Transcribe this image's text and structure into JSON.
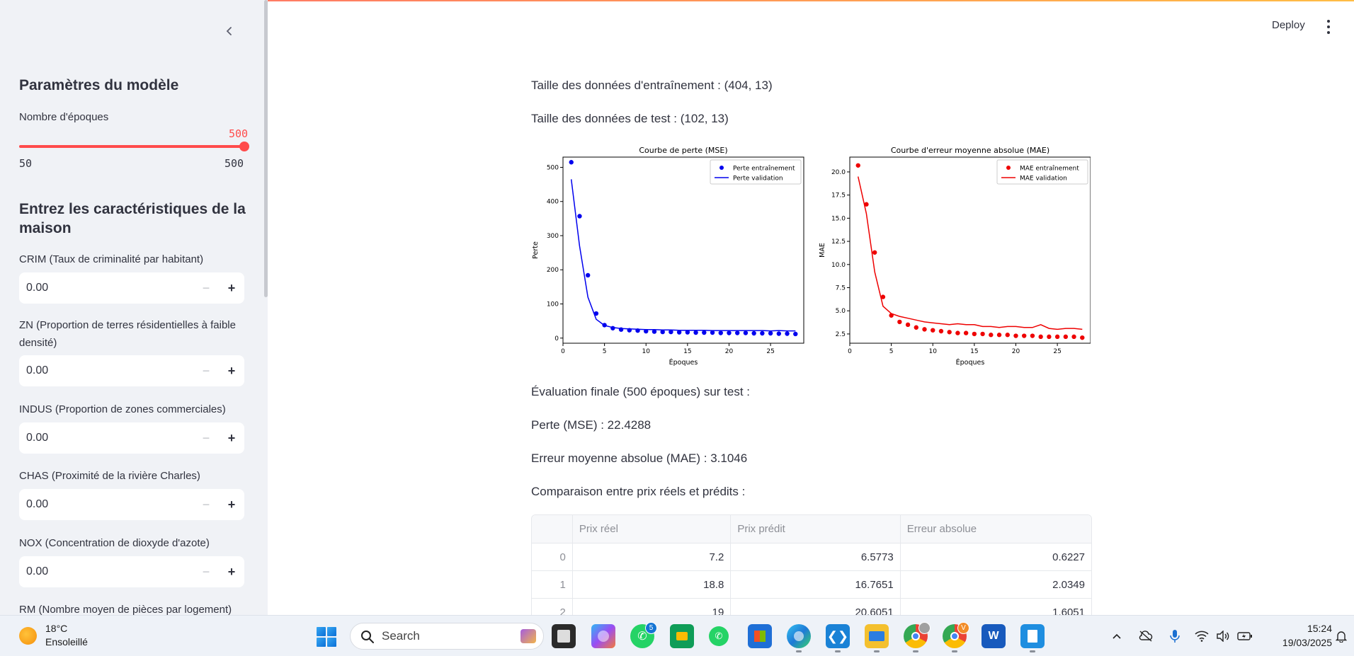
{
  "sidebar": {
    "model_heading": "Paramètres du modèle",
    "epochs_label": "Nombre d'époques",
    "epochs_value": "500",
    "epochs_min": "50",
    "epochs_max": "500",
    "epochs_fraction": 1.0,
    "features_heading": "Entrez les caractéristiques de la maison",
    "inputs": [
      {
        "label": "CRIM (Taux de criminalité par habitant)",
        "value": "0.00"
      },
      {
        "label": "ZN (Proportion de terres résidentielles à faible densité)",
        "value": "0.00"
      },
      {
        "label": "INDUS (Proportion de zones commerciales)",
        "value": "0.00"
      },
      {
        "label": "CHAS (Proximité de la rivière Charles)",
        "value": "0.00"
      },
      {
        "label": "NOX (Concentration de dioxyde d'azote)",
        "value": "0.00"
      },
      {
        "label": "RM (Nombre moyen de pièces par logement)",
        "value": ""
      }
    ],
    "minus_symbol": "−",
    "plus_symbol": "+"
  },
  "header": {
    "deploy_label": "Deploy"
  },
  "main": {
    "train_size": "Taille des données d'entraînement : (404, 13)",
    "test_size": "Taille des données de test : (102, 13)",
    "final_eval": "Évaluation finale (500 époques) sur test :",
    "loss_result": "Perte (MSE) : 22.4288",
    "mae_result": "Erreur moyenne absolue (MAE) : 3.1046",
    "comparison_title": "Comparaison entre prix réels et prédits :",
    "table": {
      "headers": [
        "",
        "Prix réel",
        "Prix prédit",
        "Erreur absolue"
      ],
      "rows": [
        [
          "0",
          "7.2",
          "6.5773",
          "0.6227"
        ],
        [
          "1",
          "18.8",
          "16.7651",
          "2.0349"
        ],
        [
          "2",
          "19",
          "20.6051",
          "1.6051"
        ]
      ]
    }
  },
  "chart_data": [
    {
      "type": "line",
      "title": "Courbe de perte (MSE)",
      "xlabel": "Époques",
      "ylabel": "Perte",
      "xlim": [
        0,
        29
      ],
      "ylim": [
        -15,
        530
      ],
      "xticks": [
        0,
        5,
        10,
        15,
        20,
        25
      ],
      "yticks": [
        0,
        100,
        200,
        300,
        400,
        500
      ],
      "legend_position": "top-right",
      "color": "#0000ee",
      "series": [
        {
          "name": "Perte entraînement",
          "style": "points",
          "x": [
            1,
            2,
            3,
            4,
            5,
            6,
            7,
            8,
            9,
            10,
            11,
            12,
            13,
            14,
            15,
            16,
            17,
            18,
            19,
            20,
            21,
            22,
            23,
            24,
            25,
            26,
            27,
            28
          ],
          "y": [
            515,
            357,
            184,
            72,
            38,
            29,
            25,
            23,
            22,
            20,
            19,
            18,
            18,
            17,
            17,
            16,
            16,
            16,
            15,
            15,
            15,
            15,
            14,
            14,
            14,
            13,
            13,
            12
          ]
        },
        {
          "name": "Perte validation",
          "style": "line",
          "x": [
            1,
            2,
            3,
            4,
            5,
            6,
            7,
            8,
            9,
            10,
            11,
            12,
            13,
            14,
            15,
            16,
            17,
            18,
            19,
            20,
            21,
            22,
            23,
            24,
            25,
            26,
            27,
            28
          ],
          "y": [
            465,
            270,
            120,
            55,
            37,
            31,
            28,
            27,
            26,
            25,
            25,
            24,
            24,
            23,
            23,
            23,
            23,
            22,
            22,
            22,
            22,
            22,
            22,
            22,
            21,
            22,
            21,
            21
          ]
        }
      ]
    },
    {
      "type": "line",
      "title": "Courbe d'erreur moyenne absolue (MAE)",
      "xlabel": "Époques",
      "ylabel": "MAE",
      "xlim": [
        0,
        29
      ],
      "ylim": [
        1.5,
        21.6
      ],
      "xticks": [
        0,
        5,
        10,
        15,
        20,
        25
      ],
      "yticks": [
        2.5,
        5.0,
        7.5,
        10.0,
        12.5,
        15.0,
        17.5,
        20.0
      ],
      "ytick_labels": [
        "2.5",
        "5.0",
        "7.5",
        "10.0",
        "12.5",
        "15.0",
        "17.5",
        "20.0"
      ],
      "legend_position": "top-right",
      "color": "#ee0000",
      "series": [
        {
          "name": "MAE entraînement",
          "style": "points",
          "x": [
            1,
            2,
            3,
            4,
            5,
            6,
            7,
            8,
            9,
            10,
            11,
            12,
            13,
            14,
            15,
            16,
            17,
            18,
            19,
            20,
            21,
            22,
            23,
            24,
            25,
            26,
            27,
            28
          ],
          "y": [
            20.7,
            16.5,
            11.3,
            6.5,
            4.5,
            3.8,
            3.5,
            3.2,
            3.0,
            2.9,
            2.8,
            2.7,
            2.6,
            2.6,
            2.5,
            2.5,
            2.4,
            2.4,
            2.4,
            2.3,
            2.3,
            2.3,
            2.2,
            2.2,
            2.2,
            2.2,
            2.2,
            2.1
          ]
        },
        {
          "name": "MAE validation",
          "style": "line",
          "x": [
            1,
            2,
            3,
            4,
            5,
            6,
            7,
            8,
            9,
            10,
            11,
            12,
            13,
            14,
            15,
            16,
            17,
            18,
            19,
            20,
            21,
            22,
            23,
            24,
            25,
            26,
            27,
            28
          ],
          "y": [
            19.5,
            15.5,
            9.2,
            5.5,
            4.7,
            4.4,
            4.2,
            4.0,
            3.8,
            3.7,
            3.6,
            3.5,
            3.6,
            3.5,
            3.5,
            3.3,
            3.3,
            3.2,
            3.3,
            3.3,
            3.2,
            3.2,
            3.5,
            3.1,
            3.0,
            3.1,
            3.1,
            3.0
          ]
        }
      ]
    }
  ],
  "taskbar": {
    "weather_temp": "18°C",
    "weather_desc": "Ensoleillé",
    "search_label": "Search",
    "whatsapp_badge": "5",
    "chrome_badge": "V",
    "clock_time": "15:24",
    "clock_date": "19/03/2025"
  }
}
